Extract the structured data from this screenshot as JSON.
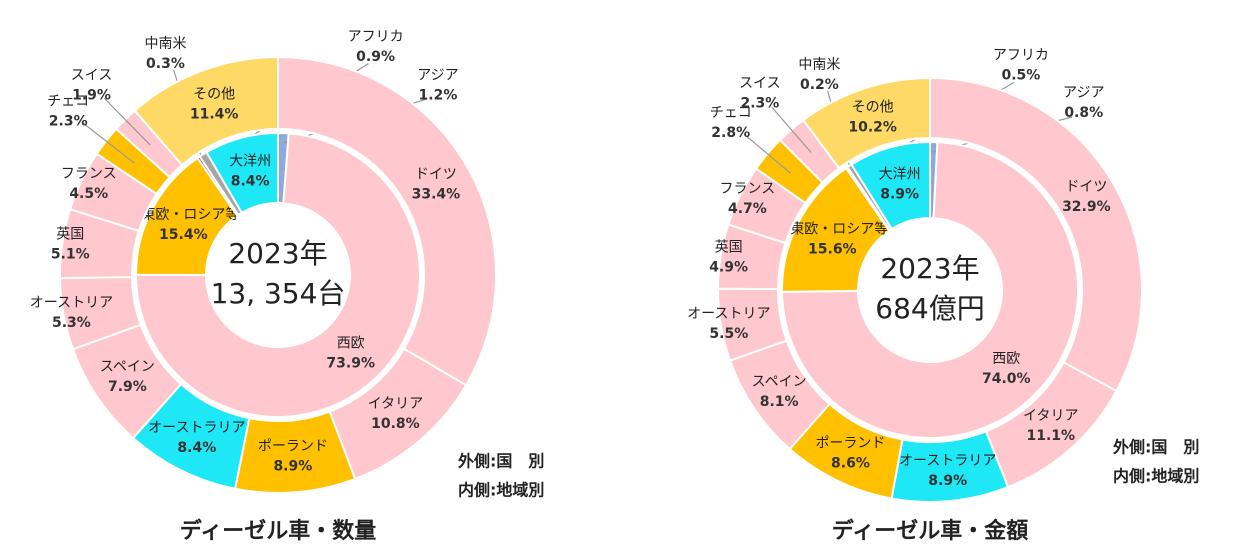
{
  "chart_data": [
    {
      "type": "nested_donut",
      "title": "ディーゼル車・数量",
      "center_text": [
        "2023年",
        "13, 354台"
      ],
      "legend_text": [
        "外側:国　別",
        "内側:地域別"
      ],
      "series": [
        {
          "categories": [
            "アジア",
            "西欧",
            "中東欧・ロシア等",
            "中南米",
            "アフリカ",
            "大洋州"
          ],
          "values": [
            1.2,
            73.9,
            15.4,
            0.3,
            0.9,
            8.4
          ],
          "value_labels": [
            "1.2%",
            "73.9%",
            "15.4%",
            "0.3%",
            "0.9%",
            "8.4%"
          ],
          "colors": [
            "#8eaadb",
            "#ffc7ce",
            "#ffc000",
            "#e00000",
            "#a6a6a6",
            "#1ee8f5"
          ]
        },
        {
          "categories": [
            "ドイツ",
            "イタリア",
            "ポーランド",
            "オーストラリア",
            "スペイン",
            "オーストリア",
            "英国",
            "フランス",
            "チェコ",
            "スイス",
            "その他"
          ],
          "values": [
            33.4,
            10.8,
            8.9,
            8.4,
            7.9,
            5.3,
            5.1,
            4.5,
            2.3,
            1.9,
            11.4
          ],
          "value_labels": [
            "33.4%",
            "10.8%",
            "8.9%",
            "8.4%",
            "7.9%",
            "5.3%",
            "5.1%",
            "4.5%",
            "2.3%",
            "1.9%",
            "11.4%"
          ],
          "colors": [
            "#ffc7ce",
            "#ffc7ce",
            "#ffc000",
            "#1ee8f5",
            "#ffc7ce",
            "#ffc7ce",
            "#ffc7ce",
            "#ffc7ce",
            "#ffc000",
            "#ffc7ce",
            "#ffd966"
          ]
        }
      ]
    },
    {
      "type": "nested_donut",
      "title": "ディーゼル車・金額",
      "center_text": [
        "2023年",
        "684億円"
      ],
      "legend_text": [
        "外側:国　別",
        "内側:地域別"
      ],
      "series": [
        {
          "categories": [
            "アジア",
            "西欧",
            "中東欧・ロシア等",
            "中南米",
            "アフリカ",
            "大洋州"
          ],
          "values": [
            0.8,
            74.0,
            15.6,
            0.2,
            0.5,
            8.9
          ],
          "value_labels": [
            "0.8%",
            "74.0%",
            "15.6%",
            "0.2%",
            "0.5%",
            "8.9%"
          ],
          "colors": [
            "#8eaadb",
            "#ffc7ce",
            "#ffc000",
            "#e00000",
            "#a6a6a6",
            "#1ee8f5"
          ]
        },
        {
          "categories": [
            "ドイツ",
            "イタリア",
            "オーストラリア",
            "ポーランド",
            "スペイン",
            "オーストリア",
            "英国",
            "フランス",
            "チェコ",
            "スイス",
            "その他"
          ],
          "values": [
            32.9,
            11.1,
            8.9,
            8.6,
            8.1,
            5.5,
            4.9,
            4.7,
            2.8,
            2.3,
            10.2
          ],
          "value_labels": [
            "32.9%",
            "11.1%",
            "8.9%",
            "8.6%",
            "8.1%",
            "5.5%",
            "4.9%",
            "4.7%",
            "2.8%",
            "2.3%",
            "10.2%"
          ],
          "colors": [
            "#ffc7ce",
            "#ffc7ce",
            "#1ee8f5",
            "#ffc000",
            "#ffc7ce",
            "#ffc7ce",
            "#ffc7ce",
            "#ffc7ce",
            "#ffc000",
            "#ffc7ce",
            "#ffd966"
          ]
        }
      ]
    }
  ]
}
